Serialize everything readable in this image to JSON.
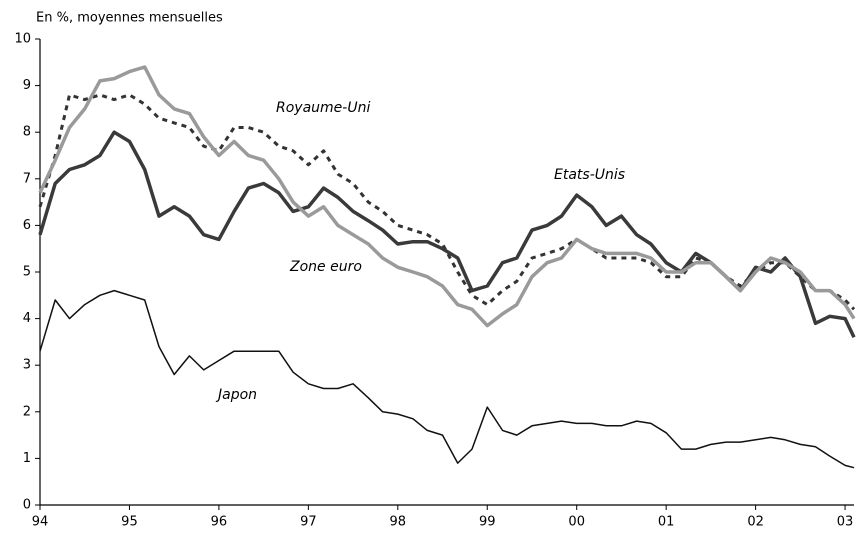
{
  "chart_data": {
    "type": "line",
    "subtitle": "En %, moyennes mensuelles",
    "annotations": [
      "Royaume-Uni",
      "Etats-Unis",
      "Zone euro",
      "Japon"
    ],
    "x": [
      1994,
      1994.17,
      1994.33,
      1994.5,
      1994.67,
      1994.83,
      1995,
      1995.17,
      1995.33,
      1995.5,
      1995.67,
      1995.83,
      1996,
      1996.17,
      1996.33,
      1996.5,
      1996.67,
      1996.83,
      1997,
      1997.17,
      1997.33,
      1997.5,
      1997.67,
      1997.83,
      1998,
      1998.17,
      1998.33,
      1998.5,
      1998.67,
      1998.83,
      1999,
      1999.17,
      1999.33,
      1999.5,
      1999.67,
      1999.83,
      2000,
      2000.17,
      2000.33,
      2000.5,
      2000.67,
      2000.83,
      2001,
      2001.17,
      2001.33,
      2001.5,
      2001.67,
      2001.83,
      2002,
      2002.17,
      2002.33,
      2002.5,
      2002.67,
      2002.83,
      2003,
      2003.1
    ],
    "series": [
      {
        "name": "Royaume-Uni",
        "color": "#333333",
        "dashed": true,
        "linewidth": 3,
        "values": [
          6.4,
          7.5,
          8.8,
          8.7,
          8.8,
          8.7,
          8.8,
          8.6,
          8.3,
          8.2,
          8.1,
          7.7,
          7.6,
          8.1,
          8.1,
          8.0,
          7.7,
          7.6,
          7.3,
          7.6,
          7.1,
          6.9,
          6.5,
          6.3,
          6.0,
          5.9,
          5.8,
          5.6,
          5.0,
          4.5,
          4.3,
          4.6,
          4.8,
          5.3,
          5.4,
          5.5,
          5.7,
          5.5,
          5.3,
          5.3,
          5.3,
          5.2,
          4.9,
          4.9,
          5.3,
          5.2,
          4.9,
          4.7,
          5.0,
          5.2,
          5.2,
          4.9,
          4.6,
          4.6,
          4.4,
          4.2
        ]
      },
      {
        "name": "Etats-Unis",
        "color": "#3a3a3a",
        "dashed": false,
        "linewidth": 3.5,
        "values": [
          5.8,
          6.9,
          7.2,
          7.3,
          7.5,
          8.0,
          7.8,
          7.2,
          6.2,
          6.4,
          6.2,
          5.8,
          5.7,
          6.3,
          6.8,
          6.9,
          6.7,
          6.3,
          6.4,
          6.8,
          6.6,
          6.3,
          6.1,
          5.9,
          5.6,
          5.65,
          5.65,
          5.5,
          5.3,
          4.6,
          4.7,
          5.2,
          5.3,
          5.9,
          6.0,
          6.2,
          6.65,
          6.4,
          6.0,
          6.2,
          5.8,
          5.6,
          5.2,
          5.0,
          5.4,
          5.2,
          4.9,
          4.6,
          5.1,
          5.0,
          5.3,
          4.9,
          3.9,
          4.05,
          4.0,
          3.6
        ]
      },
      {
        "name": "Zone euro",
        "color": "#9a9a9a",
        "dashed": false,
        "linewidth": 3.5,
        "values": [
          6.7,
          7.4,
          8.1,
          8.5,
          9.1,
          9.15,
          9.3,
          9.4,
          8.8,
          8.5,
          8.4,
          7.9,
          7.5,
          7.8,
          7.5,
          7.4,
          7.0,
          6.5,
          6.2,
          6.4,
          6.0,
          5.8,
          5.6,
          5.3,
          5.1,
          5.0,
          4.9,
          4.7,
          4.3,
          4.2,
          3.85,
          4.1,
          4.3,
          4.9,
          5.2,
          5.3,
          5.7,
          5.5,
          5.4,
          5.4,
          5.4,
          5.3,
          5.0,
          5.0,
          5.2,
          5.2,
          4.9,
          4.6,
          5.0,
          5.3,
          5.2,
          5.0,
          4.6,
          4.6,
          4.3,
          4.0
        ]
      },
      {
        "name": "Japon",
        "color": "#111111",
        "dashed": false,
        "linewidth": 1.5,
        "values": [
          3.3,
          4.4,
          4.0,
          4.3,
          4.5,
          4.6,
          4.5,
          4.4,
          3.4,
          2.8,
          3.2,
          2.9,
          3.1,
          3.3,
          3.3,
          3.3,
          3.3,
          2.85,
          2.6,
          2.5,
          2.5,
          2.6,
          2.3,
          2.0,
          1.95,
          1.85,
          1.6,
          1.5,
          0.9,
          1.2,
          2.1,
          1.6,
          1.5,
          1.7,
          1.75,
          1.8,
          1.75,
          1.75,
          1.7,
          1.7,
          1.8,
          1.75,
          1.55,
          1.2,
          1.2,
          1.3,
          1.35,
          1.35,
          1.4,
          1.45,
          1.4,
          1.3,
          1.25,
          1.05,
          0.85,
          0.8
        ]
      }
    ],
    "xlim": [
      1994,
      2003.1
    ],
    "ylim": [
      0,
      10
    ],
    "xticks": [
      {
        "value": 1994,
        "label": "94"
      },
      {
        "value": 1995,
        "label": "95"
      },
      {
        "value": 1996,
        "label": "96"
      },
      {
        "value": 1997,
        "label": "97"
      },
      {
        "value": 1998,
        "label": "98"
      },
      {
        "value": 1999,
        "label": "99"
      },
      {
        "value": 2000,
        "label": "00"
      },
      {
        "value": 2001,
        "label": "01"
      },
      {
        "value": 2002,
        "label": "02"
      },
      {
        "value": 2003,
        "label": "03"
      }
    ],
    "yticks": [
      0,
      1,
      2,
      3,
      4,
      5,
      6,
      7,
      8,
      9,
      10
    ],
    "grid": false
  }
}
